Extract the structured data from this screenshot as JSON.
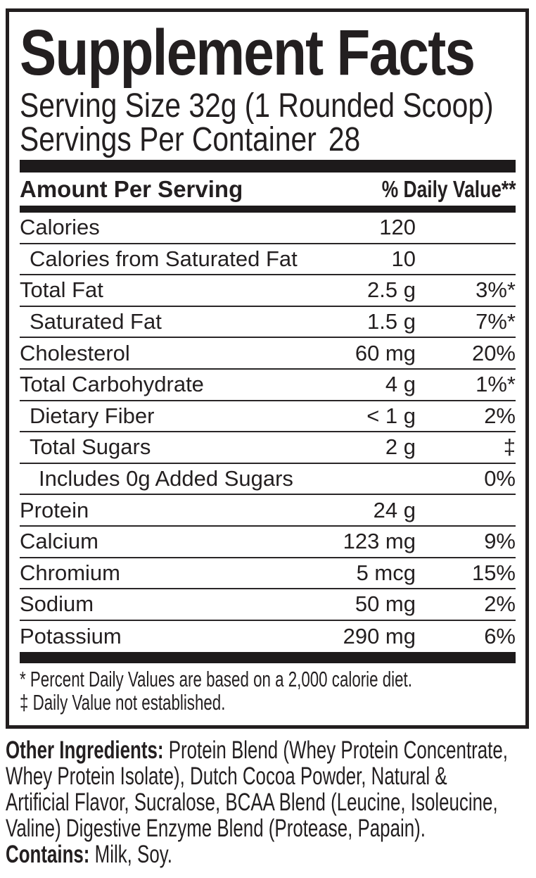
{
  "title": "Supplement Facts",
  "serving": {
    "size_line": "Serving Size 32g (1 Rounded Scoop)",
    "per_container_label": "Servings Per Container",
    "per_container_value": "28"
  },
  "table": {
    "header": {
      "left": "Amount Per Serving",
      "right": "% Daily Value**"
    },
    "rows": [
      {
        "name": "Calories",
        "amount": "120",
        "dv": "",
        "indent": 0
      },
      {
        "name": "Calories from Saturated Fat",
        "amount": "10",
        "dv": "",
        "indent": 1
      },
      {
        "name": "Total Fat",
        "amount": "2.5 g",
        "dv": "3%*",
        "indent": 0
      },
      {
        "name": "Saturated Fat",
        "amount": "1.5 g",
        "dv": "7%*",
        "indent": 1
      },
      {
        "name": "Cholesterol",
        "amount": "60 mg",
        "dv": "20%",
        "indent": 0
      },
      {
        "name": "Total Carbohydrate",
        "amount": "4 g",
        "dv": "1%*",
        "indent": 0
      },
      {
        "name": "Dietary Fiber",
        "amount": "< 1 g",
        "dv": "2%",
        "indent": 1
      },
      {
        "name": "Total Sugars",
        "amount": "2 g",
        "dv": "‡",
        "indent": 1
      },
      {
        "name": "Includes 0g Added Sugars",
        "amount": "",
        "dv": "0%",
        "indent": 2
      },
      {
        "name": "Protein",
        "amount": "24 g",
        "dv": "",
        "indent": 0
      },
      {
        "name": "Calcium",
        "amount": "123 mg",
        "dv": "9%",
        "indent": 0
      },
      {
        "name": "Chromium",
        "amount": "5 mcg",
        "dv": "15%",
        "indent": 0
      },
      {
        "name": "Sodium",
        "amount": "50 mg",
        "dv": "2%",
        "indent": 0
      },
      {
        "name": "Potassium",
        "amount": "290 mg",
        "dv": "6%",
        "indent": 0
      }
    ]
  },
  "footnotes": [
    "* Percent Daily Values are based on a 2,000 calorie diet.",
    "‡ Daily Value not established."
  ],
  "other_ingredients": {
    "label": "Other Ingredients:",
    "line1_rest": " Protein Blend (Whey Protein Concentrate,",
    "lines": [
      "Whey Protein Isolate), Dutch Cocoa Powder, Natural &",
      "Artificial Flavor, Sucralose, BCAA Blend (Leucine, Isoleucine,",
      "Valine) Digestive Enzyme Blend (Protease, Papain)."
    ]
  },
  "contains": {
    "label": "Contains:",
    "text": " Milk, Soy."
  },
  "colors": {
    "ink": "#231f20",
    "background": "#ffffff"
  }
}
